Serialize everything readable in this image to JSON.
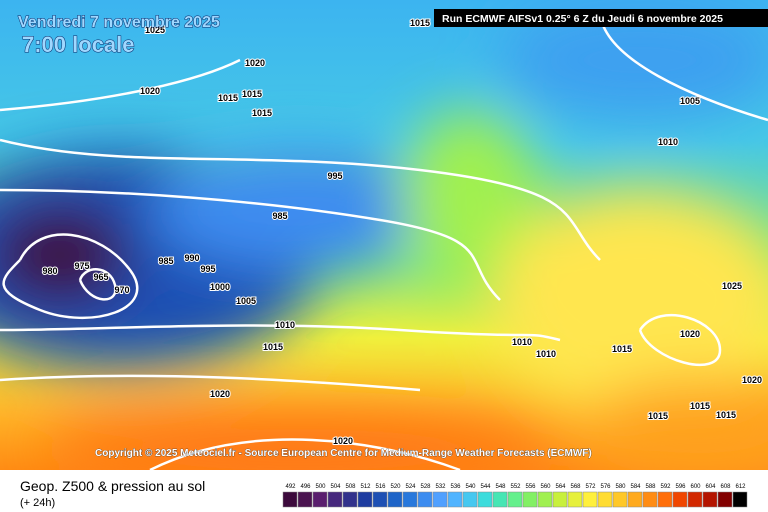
{
  "header": {
    "date": "Vendredi 7 novembre 2025",
    "time": "7:00 locale",
    "run": "Run ECMWF AIFSv1 0.25° 6 Z du Jeudi 6 novembre 2025"
  },
  "copyright": "Copyright © 2025 Meteociel.fr - Source European Centre for Medium-Range Weather Forecasts (ECMWF)",
  "footer": {
    "title": "Geop. Z500 & pression au sol",
    "lead": "(+ 24h)"
  },
  "isobar_labels": [
    "1025",
    "1015",
    "1020",
    "1020",
    "1015",
    "1015",
    "1015",
    "1005",
    "1010",
    "995",
    "985",
    "980",
    "975",
    "965",
    "970",
    "985",
    "990",
    "995",
    "1000",
    "1005",
    "1010",
    "1015",
    "1025",
    "1020",
    "1010",
    "1010",
    "1015",
    "1020",
    "1015",
    "1015",
    "1015",
    "1020",
    "1020"
  ],
  "legend": {
    "levels": [
      492,
      496,
      500,
      504,
      508,
      512,
      516,
      520,
      524,
      528,
      532,
      536,
      540,
      544,
      548,
      552,
      556,
      560,
      564,
      568,
      572,
      576,
      580,
      584,
      588,
      592,
      596,
      600,
      604,
      608,
      612
    ],
    "colors": [
      "#3c0a3c",
      "#4b1450",
      "#5a1e6e",
      "#46287d",
      "#32328c",
      "#1e3ca0",
      "#1e50b4",
      "#1e64c8",
      "#2878dc",
      "#3c8cf0",
      "#50a0ff",
      "#50b4ff",
      "#46c8f0",
      "#3cdcdc",
      "#46e6b4",
      "#64f08c",
      "#82f064",
      "#a0f050",
      "#c8f03c",
      "#e6f03c",
      "#fff03c",
      "#ffdc32",
      "#ffc828",
      "#ffaa1e",
      "#ff8c14",
      "#ff6e0a",
      "#f04600",
      "#d22800",
      "#b41400",
      "#820000",
      "#000000"
    ]
  }
}
